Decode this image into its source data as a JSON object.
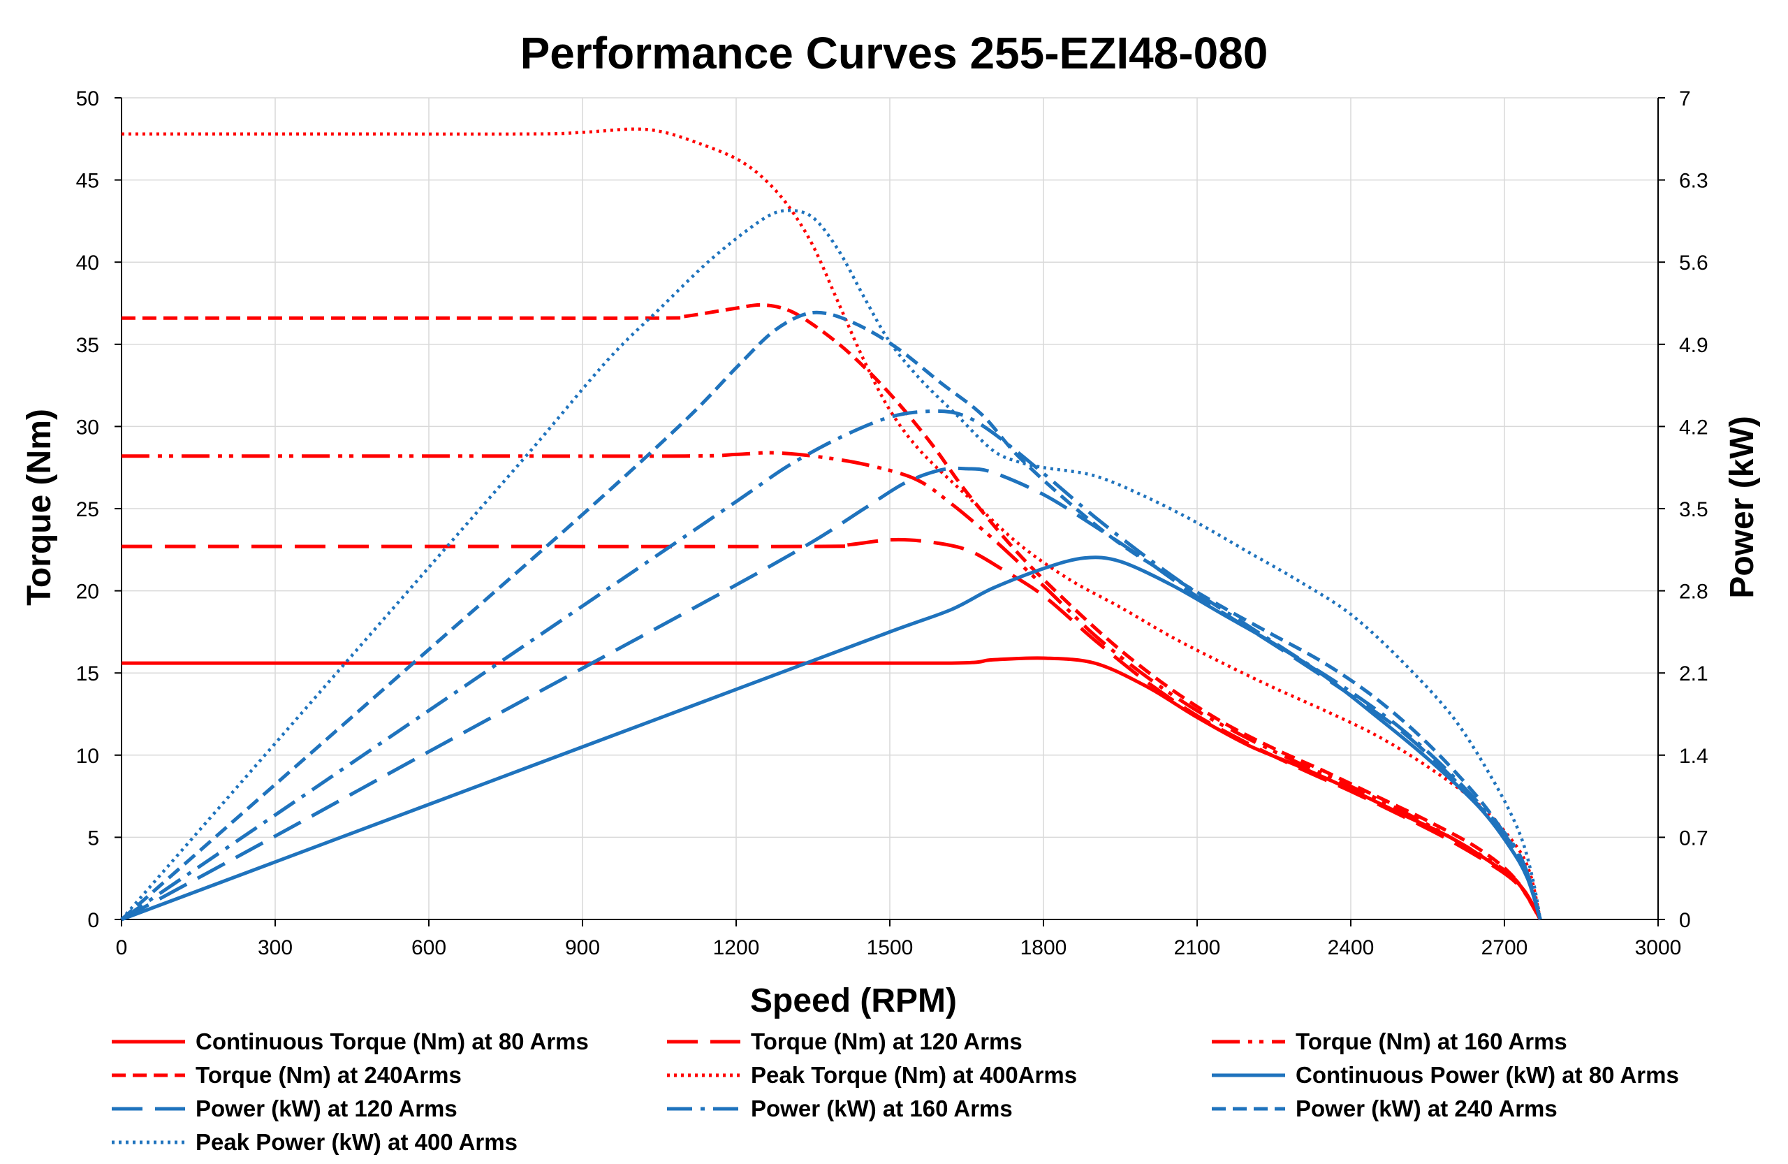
{
  "chart_data": {
    "type": "line",
    "title": "Performance Curves 255-EZI48-080",
    "xlabel": "Speed (RPM)",
    "ylabel_left": "Torque (Nm)",
    "ylabel_right": "Power (kW)",
    "xlim": [
      0,
      3000
    ],
    "ylim_left": [
      0,
      50
    ],
    "ylim_right": [
      0,
      7
    ],
    "x_ticks": [
      0,
      300,
      600,
      900,
      1200,
      1500,
      1800,
      2100,
      2400,
      2700,
      3000
    ],
    "y_left_ticks": [
      0,
      5,
      10,
      15,
      20,
      25,
      30,
      35,
      40,
      45,
      50
    ],
    "y_right_ticks": [
      "0",
      "0.7",
      "1.4",
      "2.1",
      "2.8",
      "3.5",
      "4.2",
      "4.9",
      "5.6",
      "6.3",
      "7"
    ],
    "grid": true,
    "legend_position": "bottom",
    "colors": {
      "torque": "#ff0000",
      "power": "#1f73bd"
    },
    "series": [
      {
        "name": "Continuous Torque (Nm) at 80 Arms",
        "axis": "left",
        "color": "#ff0000",
        "dash": "solid",
        "points": [
          [
            0,
            15.6
          ],
          [
            600,
            15.6
          ],
          [
            1200,
            15.6
          ],
          [
            1620,
            15.6
          ],
          [
            1700,
            15.8
          ],
          [
            1800,
            15.9
          ],
          [
            1900,
            15.6
          ],
          [
            2000,
            14.2
          ],
          [
            2100,
            12.3
          ],
          [
            2200,
            10.6
          ],
          [
            2300,
            9.3
          ],
          [
            2400,
            7.9
          ],
          [
            2500,
            6.4
          ],
          [
            2600,
            4.9
          ],
          [
            2700,
            2.9
          ],
          [
            2740,
            1.7
          ],
          [
            2770,
            0
          ]
        ]
      },
      {
        "name": "Torque (Nm) at 120 Arms",
        "axis": "left",
        "color": "#ff0000",
        "dash": "longdash",
        "points": [
          [
            0,
            22.7
          ],
          [
            600,
            22.7
          ],
          [
            1350,
            22.7
          ],
          [
            1420,
            22.8
          ],
          [
            1500,
            23.1
          ],
          [
            1570,
            23.0
          ],
          [
            1650,
            22.5
          ],
          [
            1720,
            21.3
          ],
          [
            1800,
            19.7
          ],
          [
            1900,
            17.0
          ],
          [
            2000,
            14.5
          ],
          [
            2100,
            12.4
          ],
          [
            2200,
            10.7
          ],
          [
            2300,
            9.2
          ],
          [
            2400,
            7.8
          ],
          [
            2500,
            6.3
          ],
          [
            2600,
            4.7
          ],
          [
            2700,
            2.8
          ],
          [
            2740,
            1.6
          ],
          [
            2770,
            0
          ]
        ]
      },
      {
        "name": "Torque (Nm) at 160 Arms",
        "axis": "left",
        "color": "#ff0000",
        "dash": "dashdotdot",
        "points": [
          [
            0,
            28.2
          ],
          [
            600,
            28.2
          ],
          [
            1100,
            28.2
          ],
          [
            1200,
            28.3
          ],
          [
            1270,
            28.4
          ],
          [
            1350,
            28.2
          ],
          [
            1450,
            27.7
          ],
          [
            1550,
            26.8
          ],
          [
            1620,
            25.3
          ],
          [
            1700,
            23.2
          ],
          [
            1800,
            20.3
          ],
          [
            1900,
            17.3
          ],
          [
            2000,
            14.8
          ],
          [
            2100,
            12.7
          ],
          [
            2200,
            11.0
          ],
          [
            2300,
            9.5
          ],
          [
            2400,
            8.1
          ],
          [
            2500,
            6.6
          ],
          [
            2600,
            4.9
          ],
          [
            2700,
            3.0
          ],
          [
            2740,
            1.7
          ],
          [
            2770,
            0
          ]
        ]
      },
      {
        "name": "Torque (Nm) at 240Arms",
        "axis": "left",
        "color": "#ff0000",
        "dash": "dash",
        "points": [
          [
            0,
            36.6
          ],
          [
            600,
            36.6
          ],
          [
            1050,
            36.6
          ],
          [
            1100,
            36.7
          ],
          [
            1200,
            37.2
          ],
          [
            1250,
            37.4
          ],
          [
            1300,
            37.1
          ],
          [
            1350,
            36.2
          ],
          [
            1420,
            34.5
          ],
          [
            1500,
            32.0
          ],
          [
            1580,
            29.0
          ],
          [
            1650,
            26.0
          ],
          [
            1750,
            22.3
          ],
          [
            1850,
            19.2
          ],
          [
            1950,
            16.4
          ],
          [
            2050,
            14.0
          ],
          [
            2150,
            12.0
          ],
          [
            2250,
            10.4
          ],
          [
            2350,
            9.0
          ],
          [
            2450,
            7.5
          ],
          [
            2550,
            6.0
          ],
          [
            2650,
            4.3
          ],
          [
            2720,
            2.5
          ],
          [
            2770,
            0
          ]
        ]
      },
      {
        "name": "Peak Torque (Nm) at 400Arms",
        "axis": "left",
        "color": "#ff0000",
        "dash": "dot",
        "points": [
          [
            0,
            47.8
          ],
          [
            400,
            47.8
          ],
          [
            800,
            47.8
          ],
          [
            900,
            47.9
          ],
          [
            1000,
            48.1
          ],
          [
            1060,
            47.9
          ],
          [
            1130,
            47.2
          ],
          [
            1200,
            46.3
          ],
          [
            1250,
            45.2
          ],
          [
            1300,
            43.5
          ],
          [
            1350,
            41.0
          ],
          [
            1400,
            37.5
          ],
          [
            1450,
            34.0
          ],
          [
            1500,
            31.0
          ],
          [
            1560,
            28.5
          ],
          [
            1650,
            25.8
          ],
          [
            1750,
            22.9
          ],
          [
            1850,
            20.7
          ],
          [
            1950,
            19.0
          ],
          [
            2050,
            17.2
          ],
          [
            2150,
            15.6
          ],
          [
            2250,
            14.1
          ],
          [
            2350,
            12.7
          ],
          [
            2450,
            11.2
          ],
          [
            2550,
            9.3
          ],
          [
            2650,
            7.0
          ],
          [
            2720,
            4.6
          ],
          [
            2750,
            2.8
          ],
          [
            2770,
            0
          ]
        ]
      },
      {
        "name": "Continuous Power (kW) at 80 Arms",
        "axis": "right",
        "color": "#1f73bd",
        "dash": "solid",
        "points": [
          [
            0,
            0
          ],
          [
            300,
            0.49
          ],
          [
            600,
            0.98
          ],
          [
            900,
            1.47
          ],
          [
            1200,
            1.96
          ],
          [
            1500,
            2.45
          ],
          [
            1620,
            2.64
          ],
          [
            1700,
            2.82
          ],
          [
            1800,
            2.99
          ],
          [
            1880,
            3.08
          ],
          [
            1950,
            3.05
          ],
          [
            2050,
            2.85
          ],
          [
            2150,
            2.6
          ],
          [
            2250,
            2.35
          ],
          [
            2350,
            2.07
          ],
          [
            2450,
            1.73
          ],
          [
            2550,
            1.37
          ],
          [
            2650,
            0.96
          ],
          [
            2710,
            0.62
          ],
          [
            2745,
            0.35
          ],
          [
            2770,
            0
          ]
        ]
      },
      {
        "name": "Power (kW) at 120 Arms",
        "axis": "right",
        "color": "#1f73bd",
        "dash": "longdash",
        "points": [
          [
            0,
            0
          ],
          [
            300,
            0.71
          ],
          [
            600,
            1.43
          ],
          [
            900,
            2.14
          ],
          [
            1200,
            2.85
          ],
          [
            1350,
            3.22
          ],
          [
            1450,
            3.5
          ],
          [
            1530,
            3.72
          ],
          [
            1600,
            3.83
          ],
          [
            1650,
            3.84
          ],
          [
            1700,
            3.81
          ],
          [
            1800,
            3.62
          ],
          [
            1900,
            3.35
          ],
          [
            2000,
            3.06
          ],
          [
            2100,
            2.75
          ],
          [
            2200,
            2.48
          ],
          [
            2300,
            2.2
          ],
          [
            2400,
            1.91
          ],
          [
            2500,
            1.6
          ],
          [
            2600,
            1.2
          ],
          [
            2700,
            0.72
          ],
          [
            2740,
            0.45
          ],
          [
            2770,
            0
          ]
        ]
      },
      {
        "name": "Power (kW) at 160 Arms",
        "axis": "right",
        "color": "#1f73bd",
        "dash": "dashdot",
        "points": [
          [
            0,
            0
          ],
          [
            300,
            0.89
          ],
          [
            600,
            1.78
          ],
          [
            900,
            2.67
          ],
          [
            1200,
            3.56
          ],
          [
            1300,
            3.86
          ],
          [
            1400,
            4.1
          ],
          [
            1500,
            4.28
          ],
          [
            1580,
            4.33
          ],
          [
            1640,
            4.3
          ],
          [
            1700,
            4.15
          ],
          [
            1800,
            3.8
          ],
          [
            1900,
            3.43
          ],
          [
            2000,
            3.09
          ],
          [
            2100,
            2.78
          ],
          [
            2200,
            2.5
          ],
          [
            2300,
            2.22
          ],
          [
            2400,
            1.94
          ],
          [
            2500,
            1.62
          ],
          [
            2600,
            1.22
          ],
          [
            2700,
            0.74
          ],
          [
            2740,
            0.45
          ],
          [
            2770,
            0
          ]
        ]
      },
      {
        "name": "Power (kW) at 240 Arms",
        "axis": "right",
        "color": "#1f73bd",
        "dash": "dash",
        "points": [
          [
            0,
            0
          ],
          [
            300,
            1.15
          ],
          [
            600,
            2.3
          ],
          [
            900,
            3.45
          ],
          [
            1100,
            4.25
          ],
          [
            1200,
            4.7
          ],
          [
            1270,
            5.0
          ],
          [
            1330,
            5.15
          ],
          [
            1380,
            5.16
          ],
          [
            1450,
            5.04
          ],
          [
            1520,
            4.85
          ],
          [
            1600,
            4.57
          ],
          [
            1680,
            4.3
          ],
          [
            1750,
            3.95
          ],
          [
            1850,
            3.55
          ],
          [
            1950,
            3.2
          ],
          [
            2050,
            2.92
          ],
          [
            2150,
            2.66
          ],
          [
            2250,
            2.42
          ],
          [
            2350,
            2.18
          ],
          [
            2450,
            1.88
          ],
          [
            2550,
            1.5
          ],
          [
            2650,
            1.03
          ],
          [
            2710,
            0.66
          ],
          [
            2745,
            0.38
          ],
          [
            2770,
            0
          ]
        ]
      },
      {
        "name": "Peak Power (kW) at 400 Arms",
        "axis": "right",
        "color": "#1f73bd",
        "dash": "dot",
        "points": [
          [
            0,
            0
          ],
          [
            200,
            1.0
          ],
          [
            400,
            2.0
          ],
          [
            600,
            3.0
          ],
          [
            800,
            4.0
          ],
          [
            950,
            4.77
          ],
          [
            1050,
            5.2
          ],
          [
            1150,
            5.62
          ],
          [
            1250,
            5.96
          ],
          [
            1300,
            6.04
          ],
          [
            1350,
            5.98
          ],
          [
            1400,
            5.7
          ],
          [
            1450,
            5.3
          ],
          [
            1500,
            4.92
          ],
          [
            1560,
            4.6
          ],
          [
            1630,
            4.3
          ],
          [
            1700,
            4.0
          ],
          [
            1750,
            3.9
          ],
          [
            1800,
            3.85
          ],
          [
            1900,
            3.78
          ],
          [
            2000,
            3.6
          ],
          [
            2100,
            3.38
          ],
          [
            2200,
            3.13
          ],
          [
            2300,
            2.88
          ],
          [
            2400,
            2.6
          ],
          [
            2500,
            2.2
          ],
          [
            2600,
            1.72
          ],
          [
            2680,
            1.17
          ],
          [
            2730,
            0.73
          ],
          [
            2755,
            0.35
          ],
          [
            2770,
            0
          ]
        ]
      }
    ]
  }
}
